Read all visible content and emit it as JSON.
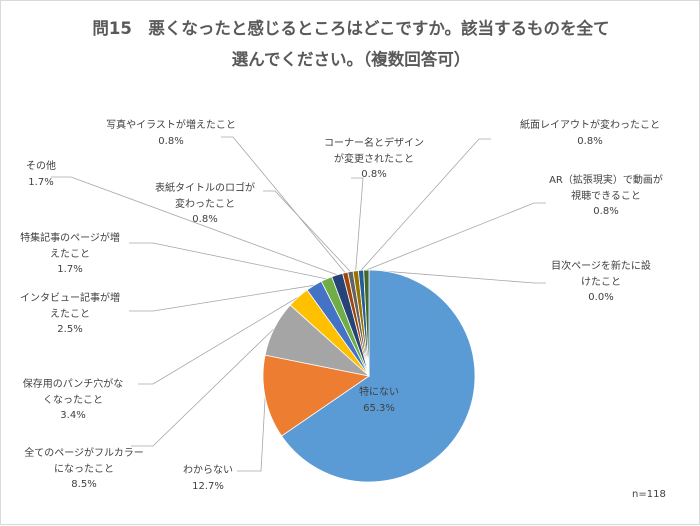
{
  "chart_data": {
    "type": "pie",
    "title": "問15　悪くなったと感じるところはどこですか。該当するものを全て選んでください。（複数回答可）",
    "note": "n=118",
    "unit": "%",
    "slices": [
      {
        "label": "特にない",
        "value": 65.3,
        "color": "#5b9bd5"
      },
      {
        "label": "わからない",
        "value": 12.7,
        "color": "#ed7d31"
      },
      {
        "label": "全てのページがフルカラーになったこと",
        "value": 8.5,
        "color": "#a5a5a5"
      },
      {
        "label": "保存用のパンチ穴がなくなったこと",
        "value": 3.4,
        "color": "#ffc000"
      },
      {
        "label": "インタビュー記事が増えたこと",
        "value": 2.5,
        "color": "#4472c4"
      },
      {
        "label": "特集記事のページが増えたこと",
        "value": 1.7,
        "color": "#70ad47"
      },
      {
        "label": "その他",
        "value": 1.7,
        "color": "#264478"
      },
      {
        "label": "写真やイラストが増えたこと",
        "value": 0.8,
        "color": "#9e480e"
      },
      {
        "label": "表紙タイトルのロゴが変わったこと",
        "value": 0.8,
        "color": "#636363"
      },
      {
        "label": "コーナー名とデザインが変更されたこと",
        "value": 0.8,
        "color": "#997300"
      },
      {
        "label": "紙面レイアウトが変わったこと",
        "value": 0.8,
        "color": "#255e91"
      },
      {
        "label": "AR（拡張現実）で動画が視聴できること",
        "value": 0.8,
        "color": "#43682b"
      },
      {
        "label": "目次ページを新たに設けたこと",
        "value": 0.0,
        "color": "#698ed0"
      }
    ],
    "labels": [
      {
        "lines": [
          "特にない"
        ],
        "pct": "65.3%"
      },
      {
        "lines": [
          "わからない"
        ],
        "pct": "12.7%"
      },
      {
        "lines": [
          "全てのページがフルカラー",
          "になったこと"
        ],
        "pct": "8.5%"
      },
      {
        "lines": [
          "保存用のパンチ穴がな",
          "くなったこと"
        ],
        "pct": "3.4%"
      },
      {
        "lines": [
          "インタビュー記事が増",
          "えたこと"
        ],
        "pct": "2.5%"
      },
      {
        "lines": [
          "特集記事のページが増",
          "えたこと"
        ],
        "pct": "1.7%"
      },
      {
        "lines": [
          "その他"
        ],
        "pct": "1.7%"
      },
      {
        "lines": [
          "写真やイラストが増えたこと"
        ],
        "pct": "0.8%"
      },
      {
        "lines": [
          "表紙タイトルのロゴが",
          "変わったこと"
        ],
        "pct": "0.8%"
      },
      {
        "lines": [
          "コーナー名とデザイン",
          "が変更されたこと"
        ],
        "pct": "0.8%"
      },
      {
        "lines": [
          "紙面レイアウトが変わったこと"
        ],
        "pct": "0.8%"
      },
      {
        "lines": [
          "AR（拡張現実）で動画が",
          "視聴できること"
        ],
        "pct": "0.8%"
      },
      {
        "lines": [
          "目次ページを新たに設",
          "けたこと"
        ],
        "pct": "0.0%"
      }
    ],
    "start_angle": "12 o'clock",
    "direction": "clockwise",
    "legend": "none"
  }
}
